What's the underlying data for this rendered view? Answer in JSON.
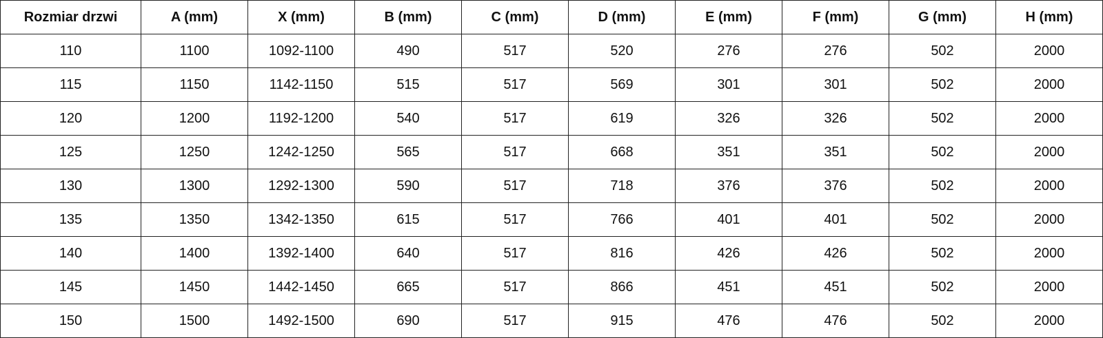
{
  "table": {
    "headers": [
      "Rozmiar drzwi",
      "A (mm)",
      "X (mm)",
      "B (mm)",
      "C (mm)",
      "D (mm)",
      "E (mm)",
      "F (mm)",
      "G (mm)",
      "H (mm)"
    ],
    "rows": [
      [
        "110",
        "1100",
        "1092-1100",
        "490",
        "517",
        "520",
        "276",
        "276",
        "502",
        "2000"
      ],
      [
        "115",
        "1150",
        "1142-1150",
        "515",
        "517",
        "569",
        "301",
        "301",
        "502",
        "2000"
      ],
      [
        "120",
        "1200",
        "1192-1200",
        "540",
        "517",
        "619",
        "326",
        "326",
        "502",
        "2000"
      ],
      [
        "125",
        "1250",
        "1242-1250",
        "565",
        "517",
        "668",
        "351",
        "351",
        "502",
        "2000"
      ],
      [
        "130",
        "1300",
        "1292-1300",
        "590",
        "517",
        "718",
        "376",
        "376",
        "502",
        "2000"
      ],
      [
        "135",
        "1350",
        "1342-1350",
        "615",
        "517",
        "766",
        "401",
        "401",
        "502",
        "2000"
      ],
      [
        "140",
        "1400",
        "1392-1400",
        "640",
        "517",
        "816",
        "426",
        "426",
        "502",
        "2000"
      ],
      [
        "145",
        "1450",
        "1442-1450",
        "665",
        "517",
        "866",
        "451",
        "451",
        "502",
        "2000"
      ],
      [
        "150",
        "1500",
        "1492-1500",
        "690",
        "517",
        "915",
        "476",
        "476",
        "502",
        "2000"
      ]
    ]
  }
}
